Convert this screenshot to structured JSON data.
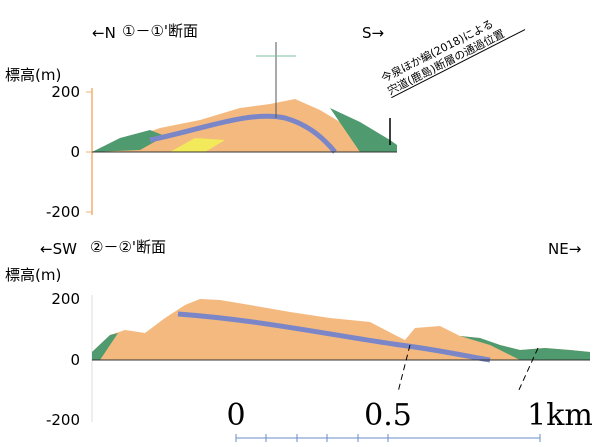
{
  "section1": {
    "left": "←N",
    "title": "①－①'断面",
    "right": "S→",
    "y_label": "標高(m)",
    "y_ticks": [
      "200",
      "0",
      "-200"
    ],
    "annotation": [
      "今泉ほか編(2018)による",
      "宍道(鹿島)断層の通過位置"
    ]
  },
  "section2": {
    "left": "←SW",
    "title": "②－②'断面",
    "right": "NE→",
    "y_label": "標高(m)",
    "y_ticks": [
      "200",
      "0",
      "-200"
    ]
  },
  "scale": [
    "0",
    "0.5",
    "1km"
  ]
}
